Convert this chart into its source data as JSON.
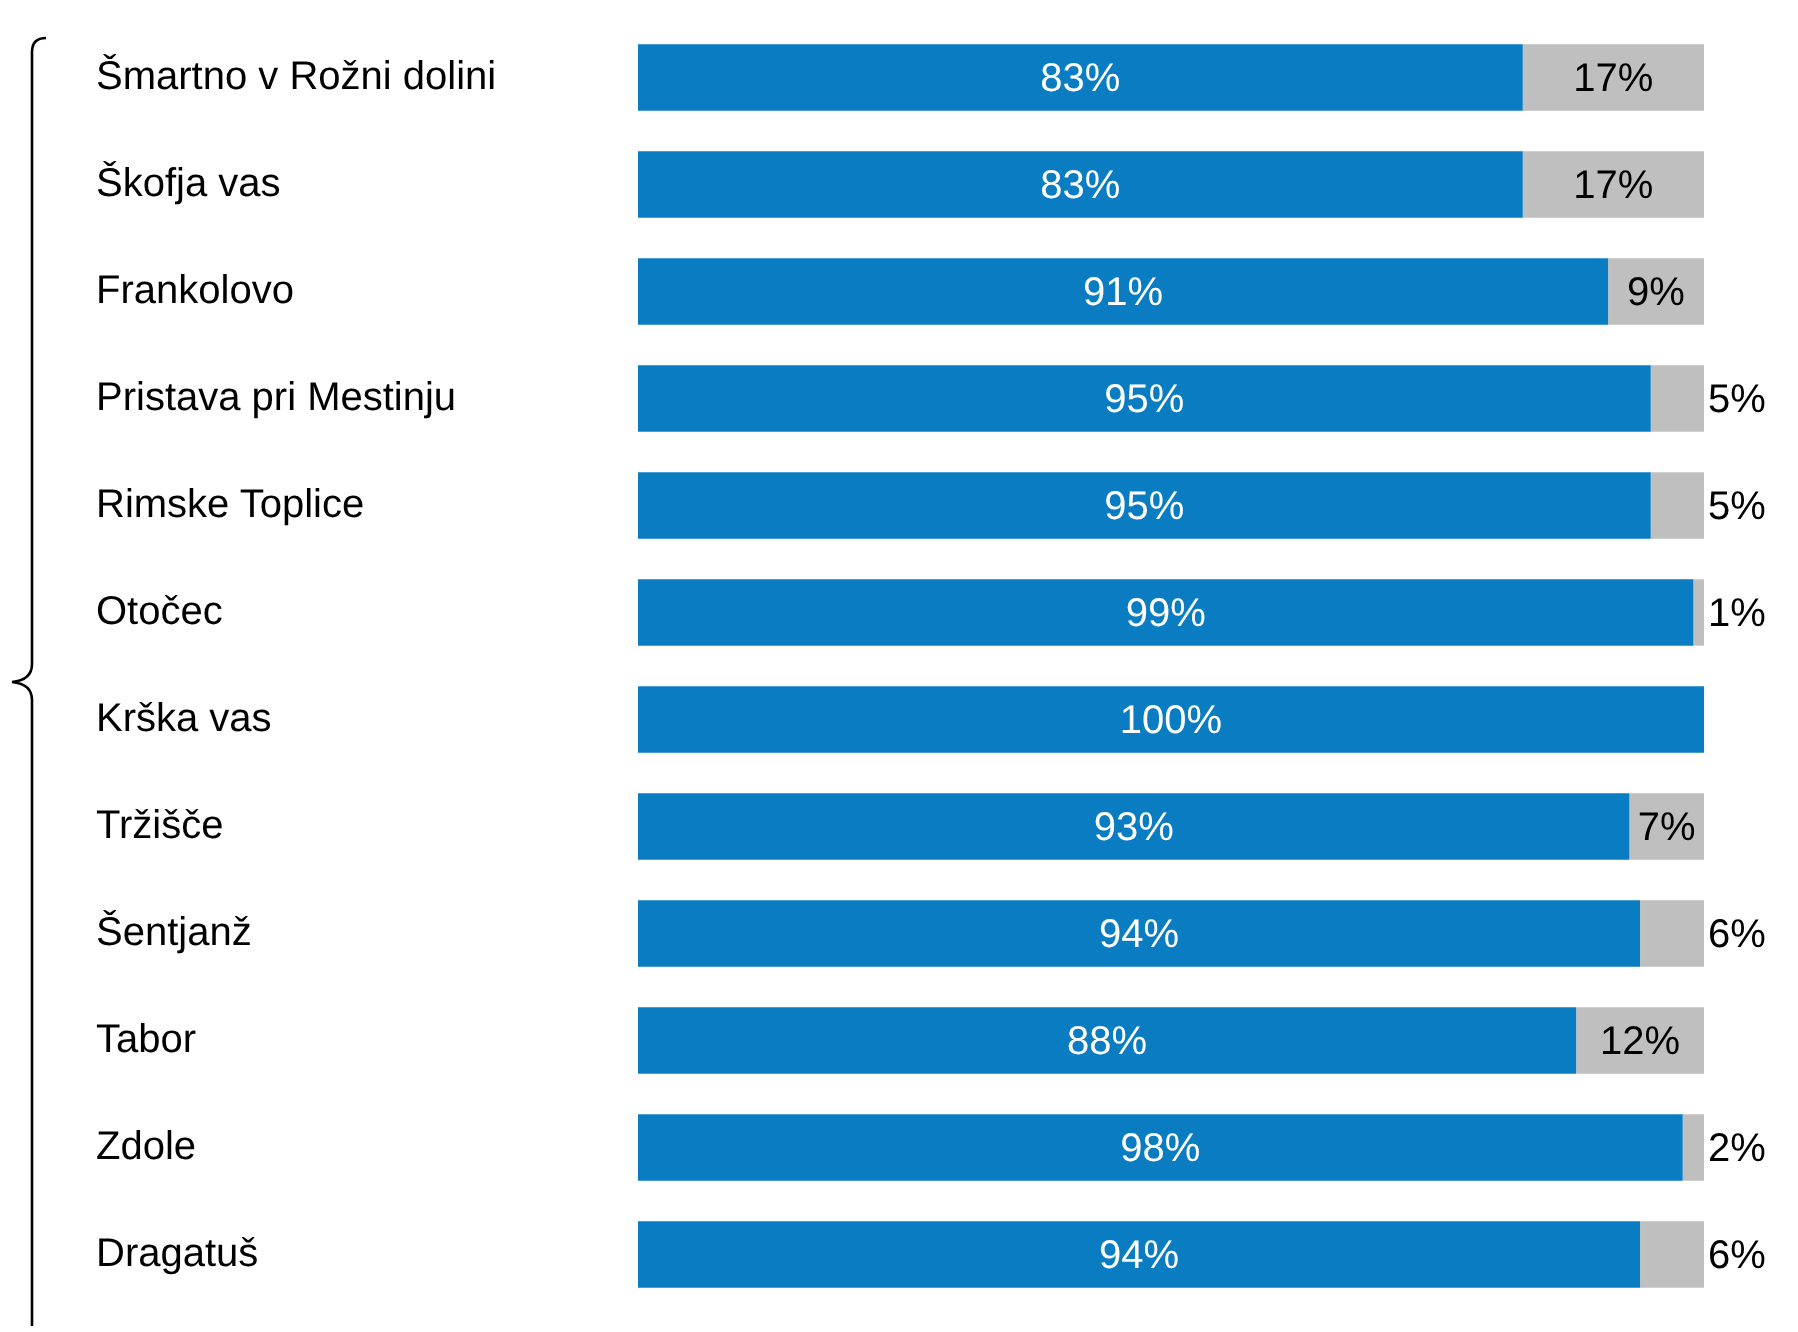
{
  "chart_data": {
    "type": "bar",
    "orientation": "horizontal",
    "stacked": true,
    "categories": [
      "Šmartno v Rožni dolini",
      "Škofja vas",
      "Frankolovo",
      "Pristava pri Mestinju",
      "Rimske Toplice",
      "Otočec",
      "Krška vas",
      "Tržišče",
      "Šentjanž",
      "Tabor",
      "Zdole",
      "Dragatuš"
    ],
    "series": [
      {
        "color": "#0a7dc2",
        "values": [
          83,
          83,
          91,
          95,
          95,
          99,
          100,
          93,
          94,
          88,
          98,
          94
        ],
        "value_labels": [
          "83%",
          "83%",
          "91%",
          "95%",
          "95%",
          "99%",
          "100%",
          "93%",
          "94%",
          "88%",
          "98%",
          "94%"
        ]
      },
      {
        "color": "#bfbfbf",
        "values": [
          17,
          17,
          9,
          5,
          5,
          1,
          0,
          7,
          6,
          12,
          2,
          6
        ],
        "value_labels": [
          "17%",
          "17%",
          "9%",
          "5%",
          "5%",
          "1%",
          null,
          "7%",
          "6%",
          "12%",
          "2%",
          "6%"
        ]
      }
    ],
    "xlim": [
      0,
      100
    ],
    "tick_labels": "y",
    "legend": false
  }
}
